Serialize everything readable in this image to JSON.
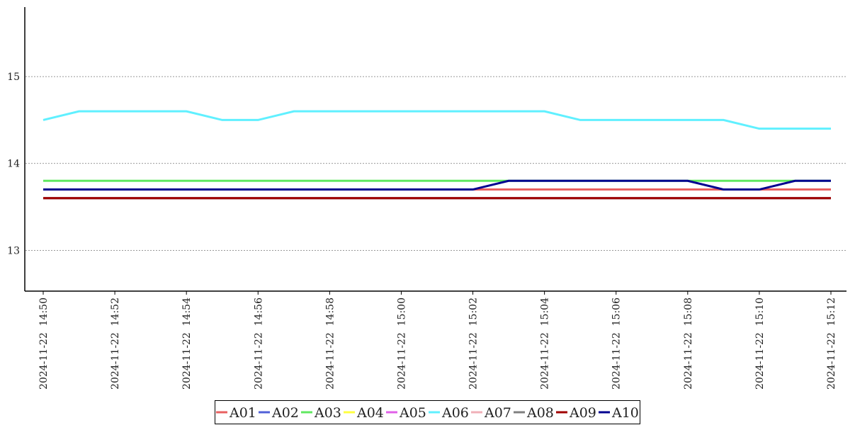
{
  "chart_data": {
    "type": "line",
    "categories": [
      "2024-11-22  14:50",
      null,
      "2024-11-22  14:52",
      null,
      "2024-11-22  14:54",
      null,
      "2024-11-22  14:56",
      null,
      "2024-11-22  14:58",
      null,
      "2024-11-22  15:00",
      null,
      "2024-11-22  15:02",
      null,
      "2024-11-22  15:04",
      null,
      "2024-11-22  15:06",
      null,
      "2024-11-22  15:08",
      null,
      "2024-11-22  15:10",
      null,
      "2024-11-22  15:12"
    ],
    "series": [
      {
        "name": "A01",
        "color": "#e86060",
        "values": [
          13.7,
          13.7,
          13.7,
          13.7,
          13.7,
          13.7,
          13.7,
          13.7,
          13.7,
          13.7,
          13.7,
          13.7,
          13.7,
          13.7,
          13.7,
          13.7,
          13.7,
          13.7,
          13.7,
          13.7,
          13.7,
          13.7,
          13.7
        ]
      },
      {
        "name": "A02",
        "color": "#5060d8",
        "values": [
          13.6,
          13.6,
          13.6,
          13.6,
          13.6,
          13.6,
          13.6,
          13.6,
          13.6,
          13.6,
          13.6,
          13.6,
          13.6,
          13.6,
          13.6,
          13.6,
          13.6,
          13.6,
          13.6,
          13.6,
          13.6,
          13.6,
          13.6
        ]
      },
      {
        "name": "A03",
        "color": "#60e860",
        "values": [
          13.8,
          13.8,
          13.8,
          13.8,
          13.8,
          13.8,
          13.8,
          13.8,
          13.8,
          13.8,
          13.8,
          13.8,
          13.8,
          13.8,
          13.8,
          13.8,
          13.8,
          13.8,
          13.8,
          13.8,
          13.8,
          13.8,
          13.8
        ]
      },
      {
        "name": "A04",
        "color": "#ffff40",
        "values": [
          13.6,
          13.6,
          13.6,
          13.6,
          13.6,
          13.6,
          13.6,
          13.6,
          13.6,
          13.6,
          13.6,
          13.6,
          13.6,
          13.6,
          13.6,
          13.6,
          13.6,
          13.6,
          13.6,
          13.6,
          13.6,
          13.6,
          13.6
        ]
      },
      {
        "name": "A05",
        "color": "#e060e8",
        "values": [
          13.6,
          13.6,
          13.6,
          13.6,
          13.6,
          13.6,
          13.6,
          13.6,
          13.6,
          13.6,
          13.6,
          13.6,
          13.6,
          13.6,
          13.6,
          13.6,
          13.6,
          13.6,
          13.6,
          13.6,
          13.6,
          13.6,
          13.6
        ]
      },
      {
        "name": "A06",
        "color": "#60f0ff",
        "values": [
          14.5,
          14.6,
          14.6,
          14.6,
          14.6,
          14.5,
          14.5,
          14.6,
          14.6,
          14.6,
          14.6,
          14.6,
          14.6,
          14.6,
          14.6,
          14.5,
          14.5,
          14.5,
          14.5,
          14.5,
          14.4,
          14.4,
          14.4
        ]
      },
      {
        "name": "A07",
        "color": "#f0b0b8",
        "values": [
          13.6,
          13.6,
          13.6,
          13.6,
          13.6,
          13.6,
          13.6,
          13.6,
          13.6,
          13.6,
          13.6,
          13.6,
          13.6,
          13.6,
          13.6,
          13.6,
          13.6,
          13.6,
          13.6,
          13.6,
          13.6,
          13.6,
          13.6
        ]
      },
      {
        "name": "A08",
        "color": "#808080",
        "values": [
          13.6,
          13.6,
          13.6,
          13.6,
          13.6,
          13.6,
          13.6,
          13.6,
          13.6,
          13.6,
          13.6,
          13.6,
          13.6,
          13.6,
          13.6,
          13.6,
          13.6,
          13.6,
          13.6,
          13.6,
          13.6,
          13.6,
          13.6
        ]
      },
      {
        "name": "A09",
        "color": "#a00000",
        "values": [
          13.6,
          13.6,
          13.6,
          13.6,
          13.6,
          13.6,
          13.6,
          13.6,
          13.6,
          13.6,
          13.6,
          13.6,
          13.6,
          13.6,
          13.6,
          13.6,
          13.6,
          13.6,
          13.6,
          13.6,
          13.6,
          13.6,
          13.6
        ]
      },
      {
        "name": "A10",
        "color": "#000090",
        "values": [
          13.7,
          13.7,
          13.7,
          13.7,
          13.7,
          13.7,
          13.7,
          13.7,
          13.7,
          13.7,
          13.7,
          13.7,
          13.7,
          13.8,
          13.8,
          13.8,
          13.8,
          13.8,
          13.8,
          13.7,
          13.7,
          13.8,
          13.8
        ]
      }
    ],
    "ylim": [
      12.53,
      15.8
    ],
    "yticks": [
      13,
      14,
      15
    ],
    "grid": true,
    "legend": "bottom"
  }
}
